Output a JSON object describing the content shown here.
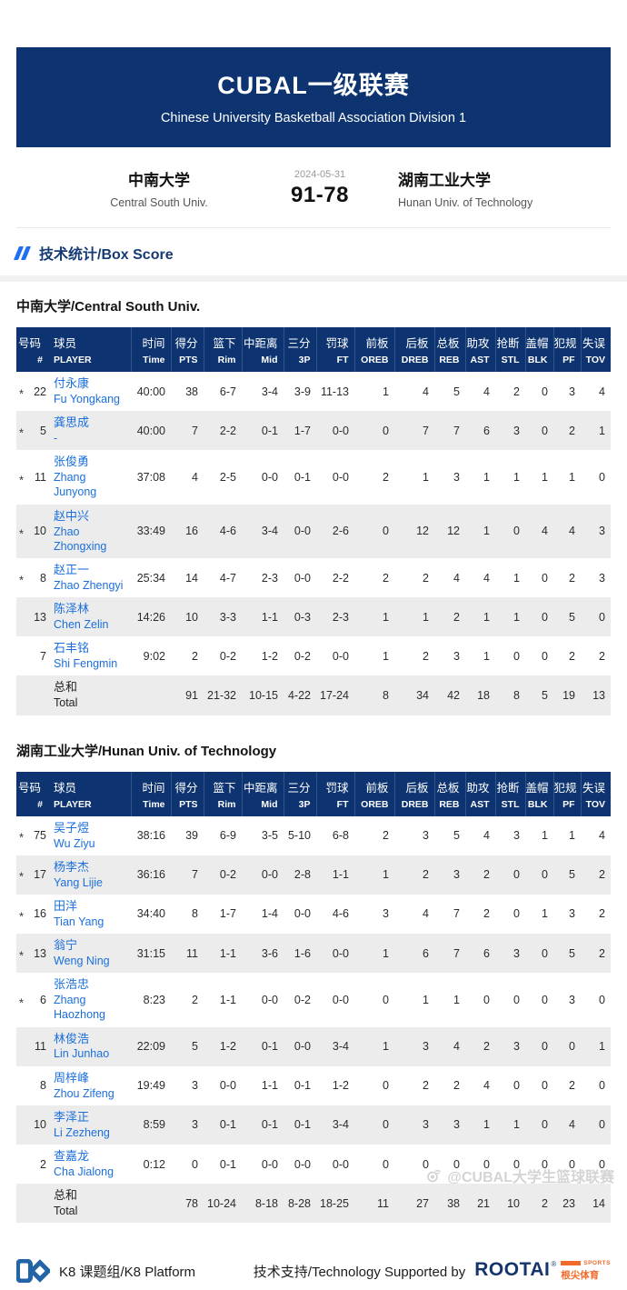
{
  "colors": {
    "navy": "#0d3470",
    "link_blue": "#1b6fdd",
    "accent_blue": "#1f6ef5",
    "rootai_navy": "#16356d",
    "rootai_orange": "#f26a2a",
    "row_alt_gray": "#ececec"
  },
  "banner": {
    "title": "CUBAL一级联赛",
    "subtitle": "Chinese University Basketball Association Division 1"
  },
  "scoreboard": {
    "date": "2024-05-31",
    "score": "91-78",
    "home_name_cn": "中南大学",
    "home_name_en": "Central South Univ.",
    "away_name_cn": "湖南工业大学",
    "away_name_en": "Hunan Univ. of Technology"
  },
  "section_title": "技术统计/Box Score",
  "table_columns": {
    "num": {
      "cn": "号码",
      "en": "#"
    },
    "player": {
      "cn": "球员",
      "en": "PLAYER"
    },
    "stats": [
      {
        "cn": "时间",
        "en": "Time"
      },
      {
        "cn": "得分",
        "en": "PTS"
      },
      {
        "cn": "篮下",
        "en": "Rim"
      },
      {
        "cn": "中距离",
        "en": "Mid"
      },
      {
        "cn": "三分",
        "en": "3P"
      },
      {
        "cn": "罚球",
        "en": "FT"
      },
      {
        "cn": "前板",
        "en": "OREB"
      },
      {
        "cn": "后板",
        "en": "DREB"
      },
      {
        "cn": "总板",
        "en": "REB"
      },
      {
        "cn": "助攻",
        "en": "AST"
      },
      {
        "cn": "抢断",
        "en": "STL"
      },
      {
        "cn": "盖帽",
        "en": "BLK"
      },
      {
        "cn": "犯规",
        "en": "PF"
      },
      {
        "cn": "失误",
        "en": "TOV"
      }
    ]
  },
  "tables": [
    {
      "team": "中南大学/Central South Univ.",
      "rows": [
        {
          "starter": true,
          "num": "22",
          "cn": "付永康",
          "en": "Fu Yongkang",
          "stats": [
            "40:00",
            "38",
            "6-7",
            "3-4",
            "3-9",
            "11-13",
            "1",
            "4",
            "5",
            "4",
            "2",
            "0",
            "3",
            "4"
          ]
        },
        {
          "starter": true,
          "num": "5",
          "cn": "龚思成",
          "en": "-",
          "stats": [
            "40:00",
            "7",
            "2-2",
            "0-1",
            "1-7",
            "0-0",
            "0",
            "7",
            "7",
            "6",
            "3",
            "0",
            "2",
            "1"
          ]
        },
        {
          "starter": true,
          "num": "11",
          "cn": "张俊勇",
          "en": "Zhang Junyong",
          "stats": [
            "37:08",
            "4",
            "2-5",
            "0-0",
            "0-1",
            "0-0",
            "2",
            "1",
            "3",
            "1",
            "1",
            "1",
            "1",
            "0"
          ]
        },
        {
          "starter": true,
          "num": "10",
          "cn": "赵中兴",
          "en": "Zhao Zhongxing",
          "stats": [
            "33:49",
            "16",
            "4-6",
            "3-4",
            "0-0",
            "2-6",
            "0",
            "12",
            "12",
            "1",
            "0",
            "4",
            "4",
            "3"
          ]
        },
        {
          "starter": true,
          "num": "8",
          "cn": "赵正一",
          "en": "Zhao Zhengyi",
          "stats": [
            "25:34",
            "14",
            "4-7",
            "2-3",
            "0-0",
            "2-2",
            "2",
            "2",
            "4",
            "4",
            "1",
            "0",
            "2",
            "3"
          ]
        },
        {
          "starter": false,
          "num": "13",
          "cn": "陈泽林",
          "en": "Chen Zelin",
          "stats": [
            "14:26",
            "10",
            "3-3",
            "1-1",
            "0-3",
            "2-3",
            "1",
            "1",
            "2",
            "1",
            "1",
            "0",
            "5",
            "0"
          ]
        },
        {
          "starter": false,
          "num": "7",
          "cn": "石丰铭",
          "en": "Shi Fengmin",
          "stats": [
            "9:02",
            "2",
            "0-2",
            "1-2",
            "0-2",
            "0-0",
            "1",
            "2",
            "3",
            "1",
            "0",
            "0",
            "2",
            "2"
          ]
        },
        {
          "is_total": true,
          "cn": "总和",
          "en": "Total",
          "stats": [
            "",
            "91",
            "21-32",
            "10-15",
            "4-22",
            "17-24",
            "8",
            "34",
            "42",
            "18",
            "8",
            "5",
            "19",
            "13"
          ]
        }
      ]
    },
    {
      "team": "湖南工业大学/Hunan Univ. of Technology",
      "rows": [
        {
          "starter": true,
          "num": "75",
          "cn": "吴子煜",
          "en": "Wu Ziyu",
          "stats": [
            "38:16",
            "39",
            "6-9",
            "3-5",
            "5-10",
            "6-8",
            "2",
            "3",
            "5",
            "4",
            "3",
            "1",
            "1",
            "4"
          ]
        },
        {
          "starter": true,
          "num": "17",
          "cn": "杨李杰",
          "en": "Yang Lijie",
          "stats": [
            "36:16",
            "7",
            "0-2",
            "0-0",
            "2-8",
            "1-1",
            "1",
            "2",
            "3",
            "2",
            "0",
            "0",
            "5",
            "2"
          ]
        },
        {
          "starter": true,
          "num": "16",
          "cn": "田洋",
          "en": "Tian Yang",
          "stats": [
            "34:40",
            "8",
            "1-7",
            "1-4",
            "0-0",
            "4-6",
            "3",
            "4",
            "7",
            "2",
            "0",
            "1",
            "3",
            "2"
          ]
        },
        {
          "starter": true,
          "num": "13",
          "cn": "翁宁",
          "en": "Weng Ning",
          "stats": [
            "31:15",
            "11",
            "1-1",
            "3-6",
            "1-6",
            "0-0",
            "1",
            "6",
            "7",
            "6",
            "3",
            "0",
            "5",
            "2"
          ]
        },
        {
          "starter": true,
          "num": "6",
          "cn": "张浩忠",
          "en": "Zhang Haozhong",
          "stats": [
            "8:23",
            "2",
            "1-1",
            "0-0",
            "0-2",
            "0-0",
            "0",
            "1",
            "1",
            "0",
            "0",
            "0",
            "3",
            "0"
          ]
        },
        {
          "starter": false,
          "num": "11",
          "cn": "林俊浩",
          "en": "Lin Junhao",
          "stats": [
            "22:09",
            "5",
            "1-2",
            "0-1",
            "0-0",
            "3-4",
            "1",
            "3",
            "4",
            "2",
            "3",
            "0",
            "0",
            "1"
          ]
        },
        {
          "starter": false,
          "num": "8",
          "cn": "周梓峰",
          "en": "Zhou Zifeng",
          "stats": [
            "19:49",
            "3",
            "0-0",
            "1-1",
            "0-1",
            "1-2",
            "0",
            "2",
            "2",
            "4",
            "0",
            "0",
            "2",
            "0"
          ]
        },
        {
          "starter": false,
          "num": "10",
          "cn": "李泽正",
          "en": "Li Zezheng",
          "stats": [
            "8:59",
            "3",
            "0-1",
            "0-1",
            "0-1",
            "3-4",
            "0",
            "3",
            "3",
            "1",
            "1",
            "0",
            "4",
            "0"
          ]
        },
        {
          "starter": false,
          "num": "2",
          "cn": "查嘉龙",
          "en": "Cha Jialong",
          "stats": [
            "0:12",
            "0",
            "0-1",
            "0-0",
            "0-0",
            "0-0",
            "0",
            "0",
            "0",
            "0",
            "0",
            "0",
            "0",
            "0"
          ]
        },
        {
          "is_total": true,
          "cn": "总和",
          "en": "Total",
          "stats": [
            "",
            "78",
            "10-24",
            "8-18",
            "8-28",
            "18-25",
            "11",
            "27",
            "38",
            "21",
            "10",
            "2",
            "23",
            "14"
          ]
        }
      ]
    }
  ],
  "footer": {
    "platform": "K8 课题组/K8 Platform",
    "support": "技术支持/Technology Supported by",
    "rootai": "ROOTAI",
    "rootai_reg": "®",
    "rootai_sports": "SPORTS",
    "rootai_cn": "根尖体育"
  },
  "watermark": "@CUBAL大学生篮球联赛"
}
